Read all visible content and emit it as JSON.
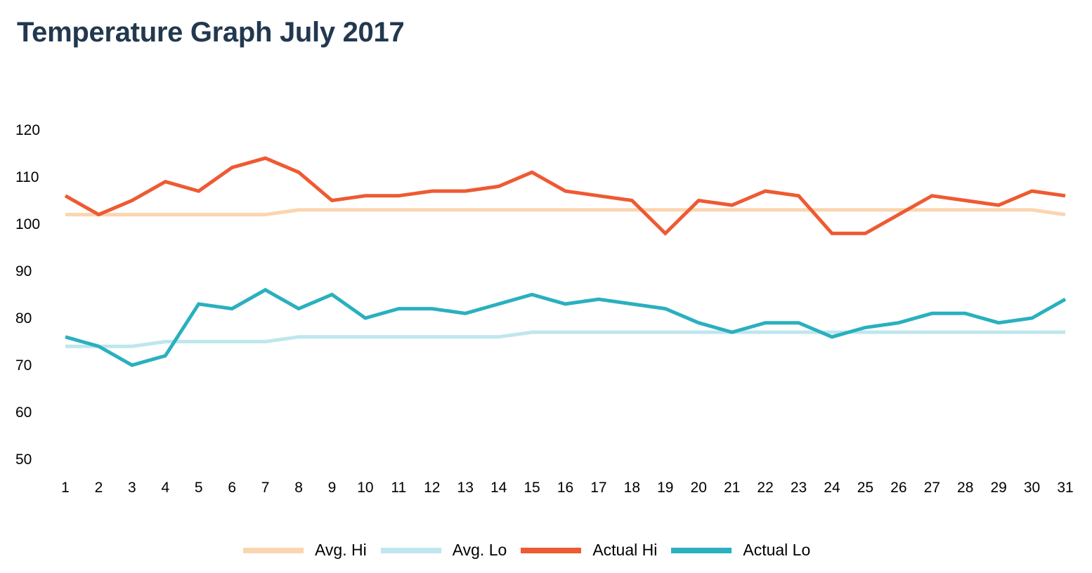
{
  "chart_data": {
    "type": "line",
    "title": "Temperature Graph July 2017",
    "xlabel": "",
    "ylabel": "",
    "x": [
      1,
      2,
      3,
      4,
      5,
      6,
      7,
      8,
      9,
      10,
      11,
      12,
      13,
      14,
      15,
      16,
      17,
      18,
      19,
      20,
      21,
      22,
      23,
      24,
      25,
      26,
      27,
      28,
      29,
      30,
      31
    ],
    "yticks": [
      50,
      60,
      70,
      80,
      90,
      100,
      110,
      120
    ],
    "ylim": [
      50,
      120
    ],
    "grid": false,
    "legend_position": "bottom",
    "series": [
      {
        "name": "Avg. Hi",
        "color": "#fbd5b0",
        "values": [
          102,
          102,
          102,
          102,
          102,
          102,
          102,
          103,
          103,
          103,
          103,
          103,
          103,
          103,
          103,
          103,
          103,
          103,
          103,
          103,
          103,
          103,
          103,
          103,
          103,
          103,
          103,
          103,
          103,
          103,
          102
        ]
      },
      {
        "name": "Avg. Lo",
        "color": "#bfe6ee",
        "values": [
          74,
          74,
          74,
          75,
          75,
          75,
          75,
          76,
          76,
          76,
          76,
          76,
          76,
          76,
          77,
          77,
          77,
          77,
          77,
          77,
          77,
          77,
          77,
          77,
          77,
          77,
          77,
          77,
          77,
          77,
          77
        ]
      },
      {
        "name": "Actual Hi",
        "color": "#ee5a32",
        "values": [
          106,
          102,
          105,
          109,
          107,
          112,
          114,
          111,
          105,
          106,
          106,
          107,
          107,
          108,
          111,
          107,
          106,
          105,
          98,
          105,
          104,
          107,
          106,
          98,
          98,
          102,
          106,
          105,
          104,
          107,
          106
        ]
      },
      {
        "name": "Actual Lo",
        "color": "#2ab0bf",
        "values": [
          76,
          74,
          70,
          72,
          83,
          82,
          86,
          82,
          85,
          80,
          82,
          82,
          81,
          83,
          85,
          83,
          84,
          83,
          82,
          79,
          77,
          79,
          79,
          76,
          78,
          79,
          81,
          81,
          79,
          80,
          84
        ]
      }
    ]
  }
}
